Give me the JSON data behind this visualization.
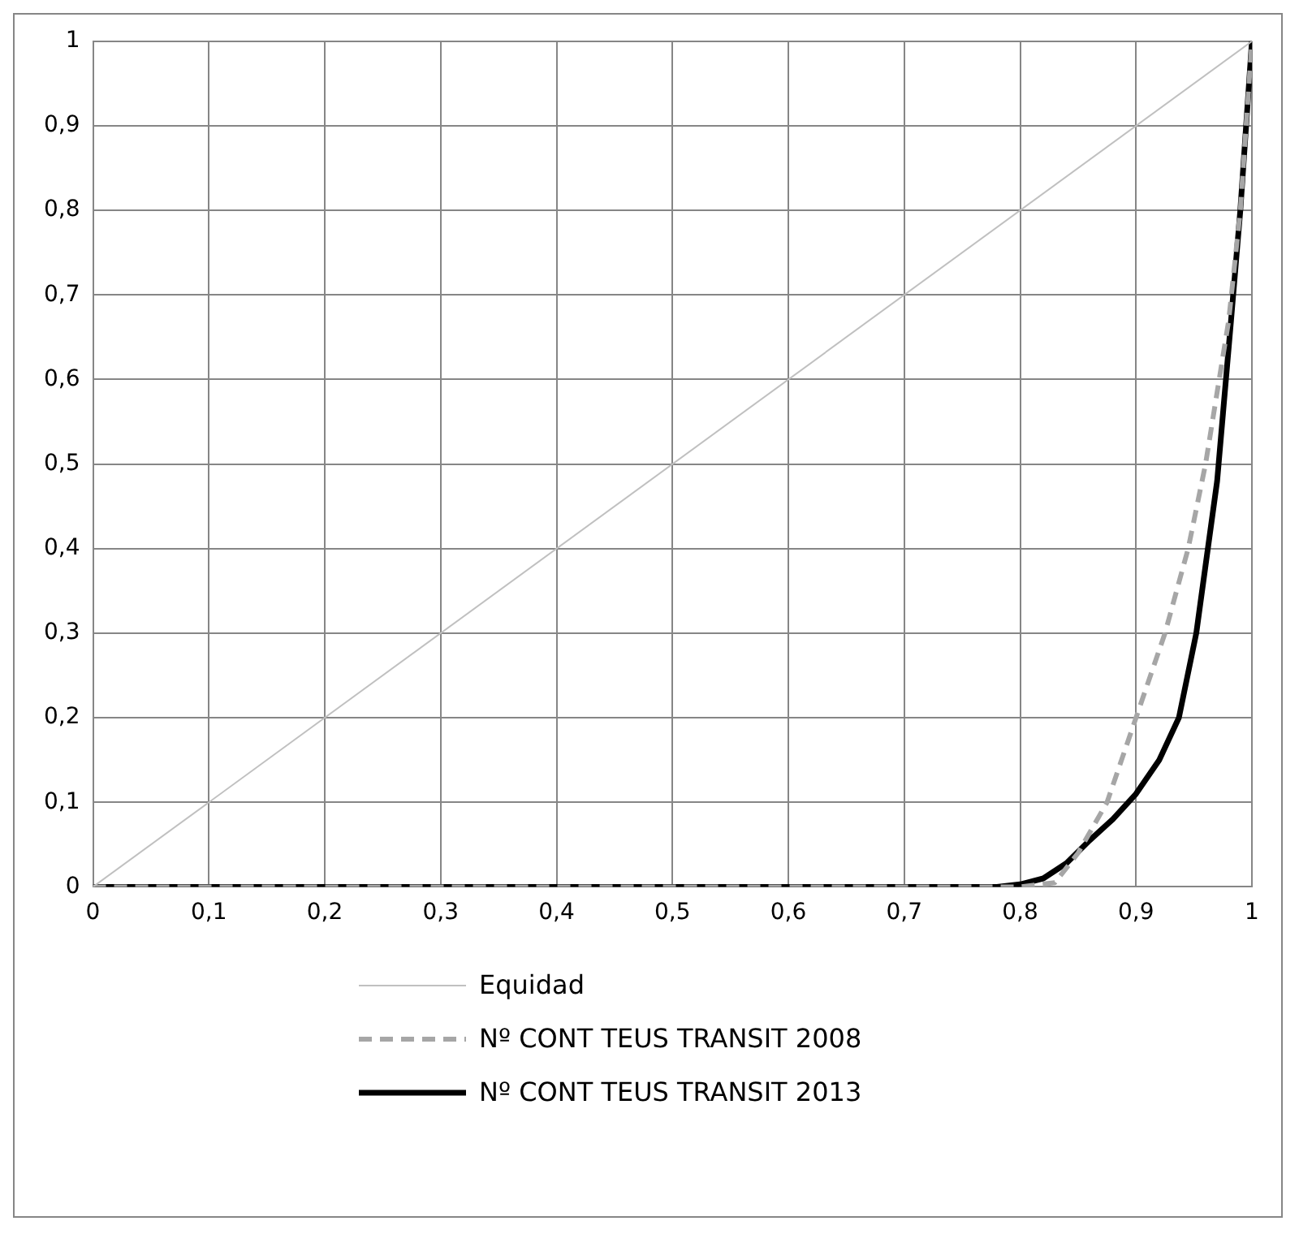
{
  "chart_data": {
    "type": "line",
    "xlim": [
      0,
      1
    ],
    "ylim": [
      0,
      1
    ],
    "xticks": [
      0,
      {
        "value": 0.1,
        "label": "0,1"
      },
      {
        "value": 0.2,
        "label": "0,2"
      },
      {
        "value": 0.3,
        "label": "0,3"
      },
      {
        "value": 0.4,
        "label": "0,4"
      },
      {
        "value": 0.5,
        "label": "0,5"
      },
      {
        "value": 0.6,
        "label": "0,6"
      },
      {
        "value": 0.7,
        "label": "0,7"
      },
      {
        "value": 0.8,
        "label": "0,8"
      },
      {
        "value": 0.9,
        "label": "0,9"
      },
      1
    ],
    "yticks": [
      0,
      {
        "value": 0.1,
        "label": "0,1"
      },
      {
        "value": 0.2,
        "label": "0,2"
      },
      {
        "value": 0.3,
        "label": "0,3"
      },
      {
        "value": 0.4,
        "label": "0,4"
      },
      {
        "value": 0.5,
        "label": "0,5"
      },
      {
        "value": 0.6,
        "label": "0,6"
      },
      {
        "value": 0.7,
        "label": "0,7"
      },
      {
        "value": 0.8,
        "label": "0,8"
      },
      {
        "value": 0.9,
        "label": "0,9"
      },
      1
    ],
    "grid": true,
    "legend": "bottom",
    "marker": "none",
    "series": [
      {
        "name": "Equidad",
        "color": "#c0c0c0",
        "line_style": "solid",
        "x": [
          0,
          1
        ],
        "values": [
          0,
          1
        ]
      },
      {
        "name": "Nº CONT TEUS TRANSIT 2008",
        "color": "#a6a6a6",
        "line_style": "dashed",
        "x": [
          0,
          0.8,
          0.83,
          0.85,
          0.875,
          0.9,
          0.925,
          0.945,
          0.96,
          0.98,
          0.99,
          1
        ],
        "values": [
          0,
          0,
          0.005,
          0.04,
          0.1,
          0.2,
          0.3,
          0.4,
          0.5,
          0.67,
          0.8,
          1
        ]
      },
      {
        "name": "Nº CONT TEUS TRANSIT 2013",
        "color": "#000000",
        "line_style": "solid",
        "x": [
          0,
          0.78,
          0.8,
          0.82,
          0.84,
          0.86,
          0.88,
          0.9,
          0.92,
          0.937,
          0.952,
          0.96,
          0.97,
          0.982,
          0.99,
          1
        ],
        "values": [
          0,
          0,
          0.003,
          0.01,
          0.028,
          0.055,
          0.08,
          0.11,
          0.15,
          0.2,
          0.3,
          0.38,
          0.48,
          0.67,
          0.8,
          1
        ]
      }
    ]
  }
}
